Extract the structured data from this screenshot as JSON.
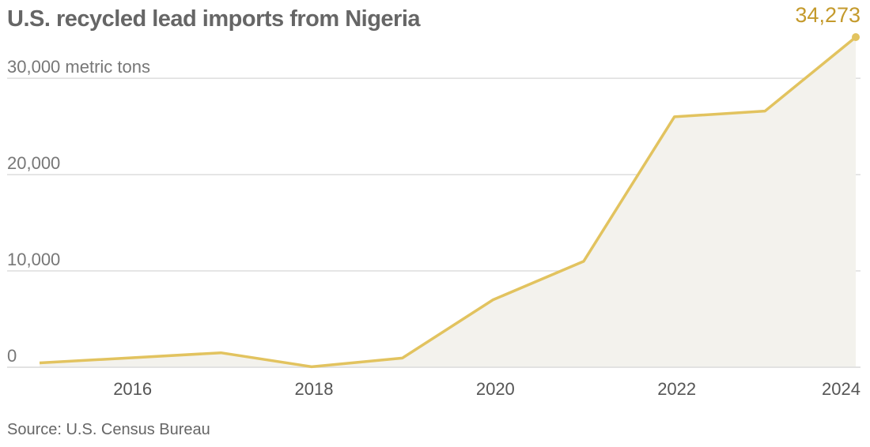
{
  "title": "U.S. recycled lead imports from Nigeria",
  "source": "Source: U.S. Census Bureau",
  "colors": {
    "line": "#e2c35f",
    "area": "#f3f2ed",
    "label": "#c49a2c",
    "grid": "#dddddd"
  },
  "chart_data": {
    "type": "area",
    "title": "U.S. recycled lead imports from Nigeria",
    "ylabel": "metric tons",
    "x": [
      2015,
      2017,
      2018,
      2019,
      2020,
      2021,
      2022,
      2023,
      2024
    ],
    "values": [
      450,
      1500,
      50,
      950,
      7000,
      11000,
      26000,
      26600,
      34273
    ],
    "ylim": [
      0,
      34273
    ],
    "xlim": [
      2015,
      2024
    ],
    "yticks": [
      0,
      10000,
      20000,
      30000
    ],
    "ytick_labels": [
      "0",
      "10,000",
      "20,000",
      "30,000 metric tons"
    ],
    "xticks": [
      2016,
      2018,
      2020,
      2022,
      2024
    ],
    "xtick_labels": [
      "2016",
      "2018",
      "2020",
      "2022",
      "2024"
    ],
    "annotation": "34,273",
    "grid": true
  }
}
